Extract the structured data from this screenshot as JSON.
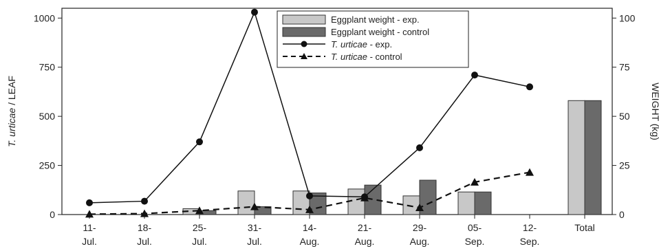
{
  "chart_data": {
    "type": "bar+line",
    "categories": [
      [
        "11-",
        "Jul."
      ],
      [
        "18-",
        "Jul."
      ],
      [
        "25-",
        "Jul."
      ],
      [
        "31-",
        "Jul."
      ],
      [
        "14-",
        "Aug."
      ],
      [
        "21-",
        "Aug."
      ],
      [
        "29-",
        "Aug."
      ],
      [
        "05-",
        "Sep."
      ],
      [
        "12-",
        "Sep."
      ],
      [
        "Total",
        ""
      ]
    ],
    "ylabel_left": "T. urticae / LEAF",
    "ylabel_left_italic": "T. urticae",
    "ylabel_left_rest": " / LEAF",
    "ylabel_right": "WEIGHT (kg)",
    "ylim_left": [
      0,
      1050
    ],
    "ylim_right": [
      0,
      105
    ],
    "yticks_left": [
      0,
      250,
      500,
      750,
      1000
    ],
    "yticks_right": [
      0,
      25,
      50,
      75,
      100
    ],
    "bar_series": [
      {
        "name": "Eggplant weight - exp.",
        "axis": "right",
        "color": "#c8c8c8",
        "values": [
          0,
          0,
          3,
          12,
          12,
          13,
          9.5,
          11.5,
          0,
          58
        ]
      },
      {
        "name": "Eggplant weight - control",
        "axis": "right",
        "color": "#6a6a6a",
        "values": [
          0,
          0,
          2,
          4,
          11,
          15,
          17.5,
          11.5,
          0,
          58
        ]
      }
    ],
    "line_series": [
      {
        "name_italic": "T. urticae",
        "name_rest": " - exp.",
        "axis": "left",
        "marker": "circle",
        "dash": "solid",
        "values": [
          60,
          68,
          370,
          1030,
          95,
          90,
          340,
          710,
          650,
          null
        ]
      },
      {
        "name_italic": "T. urticae",
        "name_rest": " - control",
        "axis": "left",
        "marker": "triangle",
        "dash": "dashed",
        "values": [
          2,
          5,
          20,
          40,
          25,
          85,
          35,
          165,
          215,
          null
        ]
      }
    ],
    "grid": false,
    "legend_position": "top-center"
  }
}
